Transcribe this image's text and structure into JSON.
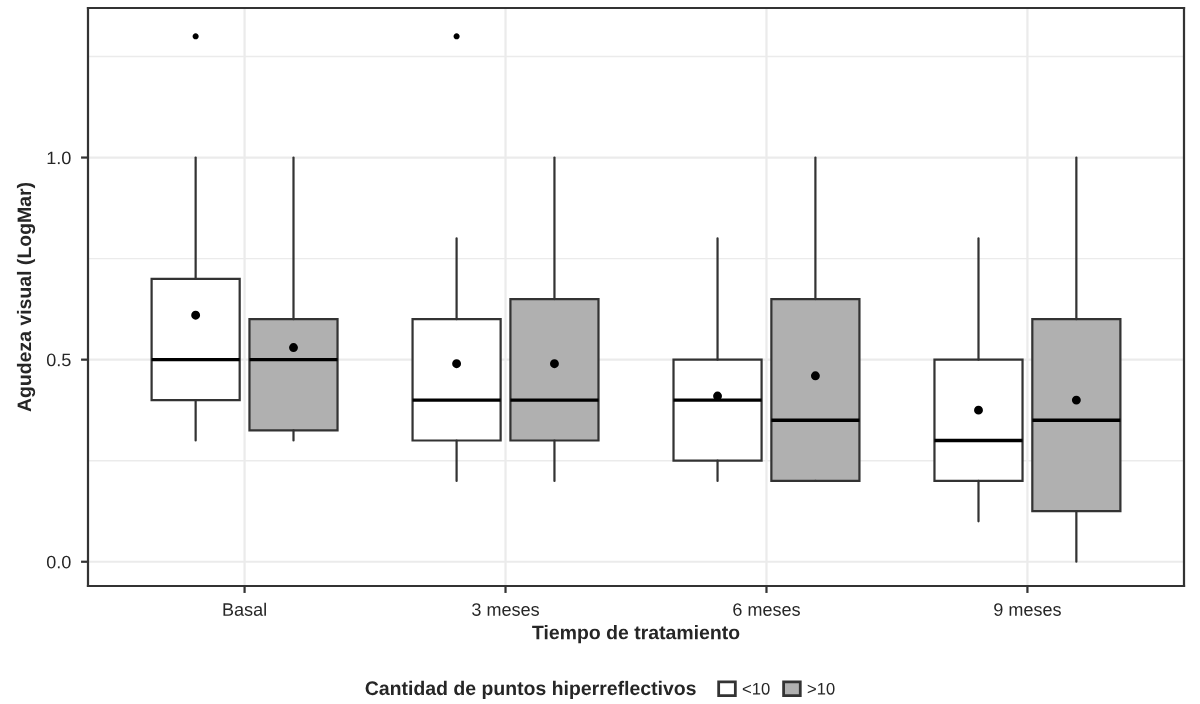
{
  "chart_data": {
    "type": "box",
    "xlabel": "Tiempo de tratamiento",
    "ylabel": "Agudeza visual (LogMar)",
    "legend_title": "Cantidad de puntos hiperreflectivos",
    "legend": "bottom",
    "grid": true,
    "categories": [
      "Basal",
      "3 meses",
      "6 meses",
      "9 meses"
    ],
    "ylim": [
      -0.06,
      1.37
    ],
    "yticks": [
      {
        "value": 0,
        "label": "0.0"
      },
      {
        "value": 0.25,
        "label": null
      },
      0.5,
      {
        "value": 0.75,
        "label": null
      },
      {
        "value": 1,
        "label": "1.0"
      },
      {
        "value": 1.25,
        "label": null
      }
    ],
    "series": [
      {
        "name": "<10",
        "color": "#ffffff",
        "boxes": [
          {
            "low": 0.3,
            "q1": 0.4,
            "median": 0.5,
            "q3": 0.7,
            "high": 1.0,
            "mean": 0.61,
            "outliers": [
              1.3
            ]
          },
          {
            "low": 0.2,
            "q1": 0.3,
            "median": 0.4,
            "q3": 0.6,
            "high": 0.8,
            "mean": 0.49,
            "outliers": [
              1.3
            ]
          },
          {
            "low": 0.2,
            "q1": 0.25,
            "median": 0.4,
            "q3": 0.5,
            "high": 0.8,
            "mean": 0.41
          },
          {
            "low": 0.1,
            "q1": 0.2,
            "median": 0.3,
            "q3": 0.5,
            "high": 0.8,
            "mean": 0.375
          }
        ]
      },
      {
        "name": ">10",
        "color": "#b0b0b0",
        "boxes": [
          {
            "low": 0.3,
            "q1": 0.325,
            "median": 0.5,
            "q3": 0.6,
            "high": 1.0,
            "mean": 0.53
          },
          {
            "low": 0.2,
            "q1": 0.3,
            "median": 0.4,
            "q3": 0.65,
            "high": 1.0,
            "mean": 0.49
          },
          {
            "low": 0.2,
            "q1": 0.2,
            "median": 0.35,
            "q3": 0.65,
            "high": 1.0,
            "mean": 0.46
          },
          {
            "low": 0.0,
            "q1": 0.125,
            "median": 0.35,
            "q3": 0.6,
            "high": 1.0,
            "mean": 0.4
          }
        ]
      }
    ]
  }
}
